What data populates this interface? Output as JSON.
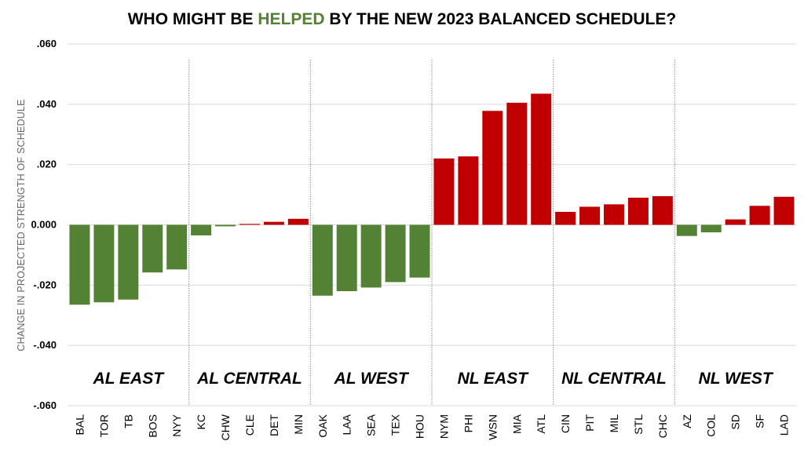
{
  "chart_data": {
    "type": "bar",
    "title_parts": [
      "WHO MIGHT BE ",
      "HELPED",
      " BY THE NEW 2023 BALANCED SCHEDULE?"
    ],
    "ylabel": "CHANGE IN PROJECTED  STRENGTH OF SCHEDULE",
    "ylim": [
      -0.06,
      0.06
    ],
    "yticks": [
      ".060",
      ".040",
      ".020",
      "0.000",
      "-.020",
      "-.040",
      "-.060"
    ],
    "grid": true,
    "colors": {
      "helped": "#548235",
      "hurt": "#C00000",
      "title_accent": "#548235"
    },
    "divisions": [
      {
        "name": "AL EAST",
        "teams": [
          "BAL",
          "TOR",
          "TB",
          "BOS",
          "NYY"
        ],
        "values": [
          -0.0265,
          -0.0257,
          -0.0248,
          -0.0158,
          -0.0148
        ]
      },
      {
        "name": "AL CENTRAL",
        "teams": [
          "KC",
          "CHW",
          "CLE",
          "DET",
          "MIN"
        ],
        "values": [
          -0.0035,
          -0.0005,
          0.0003,
          0.001,
          0.002
        ]
      },
      {
        "name": "AL WEST",
        "teams": [
          "OAK",
          "LAA",
          "SEA",
          "TEX",
          "HOU"
        ],
        "values": [
          -0.0235,
          -0.022,
          -0.0208,
          -0.019,
          -0.0175
        ]
      },
      {
        "name": "NL EAST",
        "teams": [
          "NYM",
          "PHI",
          "WSN",
          "MIA",
          "ATL"
        ],
        "values": [
          0.022,
          0.0227,
          0.0378,
          0.0405,
          0.0435
        ]
      },
      {
        "name": "NL CENTRAL",
        "teams": [
          "CIN",
          "PIT",
          "MIL",
          "STL",
          "CHC"
        ],
        "values": [
          0.0043,
          0.006,
          0.0068,
          0.009,
          0.0095
        ]
      },
      {
        "name": "NL WEST",
        "teams": [
          "AZ",
          "COL",
          "SD",
          "SF",
          "LAD"
        ],
        "values": [
          -0.0037,
          -0.0025,
          0.0018,
          0.0063,
          0.0093
        ]
      }
    ]
  }
}
